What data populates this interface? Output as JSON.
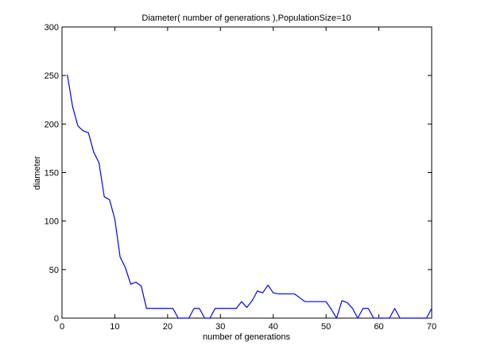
{
  "chart_data": {
    "type": "line",
    "title": "Diameter( number of generations ),PopulationSize=10",
    "xlabel": "number of generations",
    "ylabel": "diameter",
    "xlim": [
      0,
      70
    ],
    "ylim": [
      0,
      300
    ],
    "xticks": [
      0,
      10,
      20,
      30,
      40,
      50,
      60,
      70
    ],
    "yticks": [
      0,
      50,
      100,
      150,
      200,
      250,
      300
    ],
    "grid": false,
    "series": [
      {
        "color": "#0000ff",
        "x": [
          1,
          2,
          3,
          4,
          5,
          6,
          7,
          8,
          9,
          10,
          11,
          12,
          13,
          14,
          15,
          16,
          17,
          18,
          19,
          20,
          21,
          22,
          23,
          24,
          25,
          26,
          27,
          28,
          29,
          30,
          31,
          32,
          33,
          34,
          35,
          36,
          37,
          38,
          39,
          40,
          41,
          42,
          43,
          44,
          45,
          46,
          47,
          48,
          49,
          50,
          51,
          52,
          53,
          54,
          55,
          56,
          57,
          58,
          59,
          60,
          61,
          62,
          63,
          64,
          65,
          66,
          67,
          68,
          69,
          70
        ],
        "y": [
          251,
          218,
          198,
          193,
          191,
          171,
          160,
          125,
          122,
          102,
          63,
          52,
          35,
          37,
          33,
          10,
          10,
          10,
          10,
          10,
          10,
          0,
          0,
          0,
          10,
          10,
          0,
          0,
          10,
          10,
          10,
          10,
          10,
          17,
          11,
          18,
          28,
          26,
          34,
          26,
          25,
          25,
          25,
          25,
          21,
          17,
          17,
          17,
          17,
          17,
          9,
          0,
          18,
          16,
          10,
          0,
          10,
          10,
          0,
          0,
          0,
          0,
          10,
          0,
          0,
          0,
          0,
          0,
          0,
          10
        ]
      }
    ]
  }
}
